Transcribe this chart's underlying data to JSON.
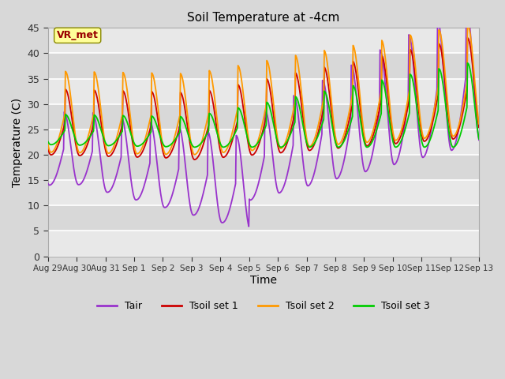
{
  "title": "Soil Temperature at -4cm",
  "xlabel": "Time",
  "ylabel": "Temperature (C)",
  "ylim": [
    0,
    45
  ],
  "yticks": [
    0,
    5,
    10,
    15,
    20,
    25,
    30,
    35,
    40,
    45
  ],
  "xtick_labels": [
    "Aug 29",
    "Aug 30",
    "Aug 31",
    "Sep 1",
    "Sep 2",
    "Sep 3",
    "Sep 4",
    "Sep 5",
    "Sep 6",
    "Sep 7",
    "Sep 8",
    "Sep 9",
    "Sep 10",
    "Sep 11",
    "Sep 12",
    "Sep 13"
  ],
  "legend_labels": [
    "Tair",
    "Tsoil set 1",
    "Tsoil set 2",
    "Tsoil set 3"
  ],
  "colors": {
    "tair": "#9933cc",
    "tsoil1": "#cc0000",
    "tsoil2": "#ff9900",
    "tsoil3": "#00cc00"
  },
  "annotation_text": "VR_met",
  "annotation_color": "#990000",
  "annotation_bg": "#ffff99",
  "n_days": 15,
  "pts_per_day": 48,
  "band_colors": [
    "#e8e8e8",
    "#d8d8d8"
  ]
}
